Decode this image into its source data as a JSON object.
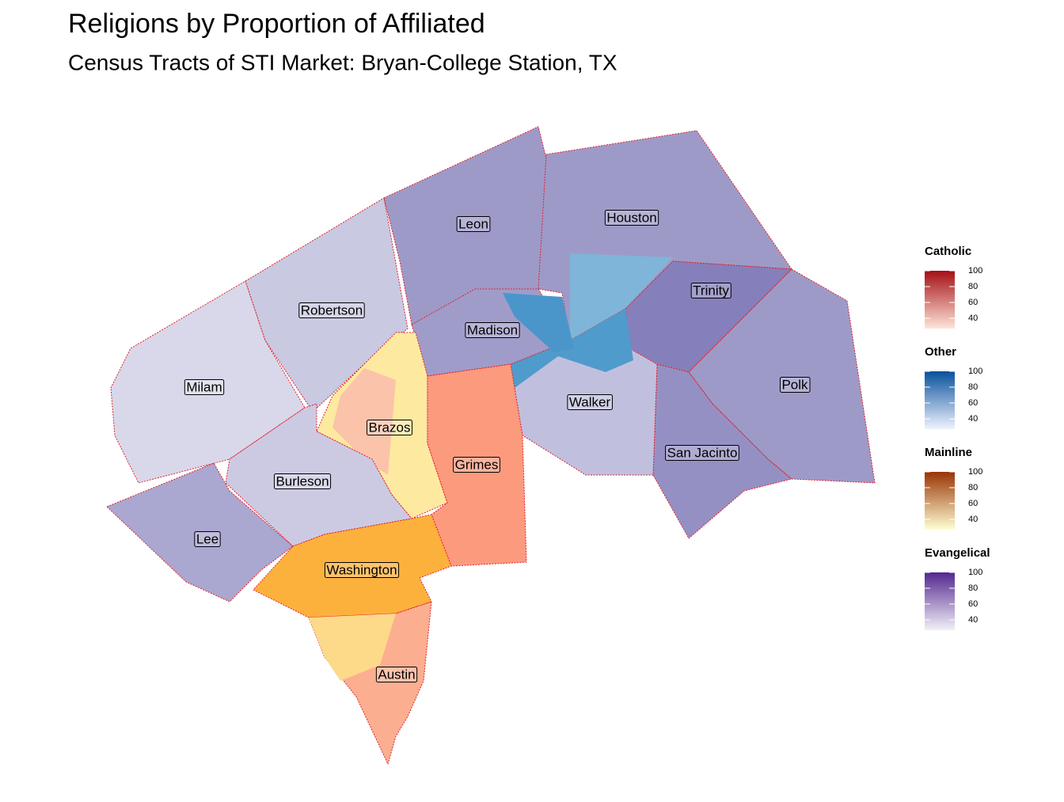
{
  "title": "Religions by Proportion of Affiliated",
  "subtitle": "Census Tracts of STI Market: Bryan-College Station, TX",
  "counties": [
    "Leon",
    "Houston",
    "Robertson",
    "Trinity",
    "Madison",
    "Milam",
    "Polk",
    "Walker",
    "Brazos",
    "San Jacinto",
    "Grimes",
    "Burleson",
    "Lee",
    "Washington",
    "Austin"
  ],
  "legends": [
    {
      "title": "Catholic",
      "colors": [
        "#fee5d9",
        "#a50f15"
      ],
      "limits": [
        27,
        100
      ],
      "ticks": [
        40,
        60,
        80,
        100
      ]
    },
    {
      "title": "Other",
      "colors": [
        "#eff3ff",
        "#08519c"
      ],
      "limits": [
        27,
        100
      ],
      "ticks": [
        40,
        60,
        80,
        100
      ]
    },
    {
      "title": "Mainline",
      "colors": [
        "#ffffd4",
        "#993404"
      ],
      "limits": [
        27,
        100
      ],
      "ticks": [
        40,
        60,
        80,
        100
      ]
    },
    {
      "title": "Evangelical",
      "colors": [
        "#f2f0f7",
        "#54278f"
      ],
      "limits": [
        27,
        100
      ],
      "ticks": [
        40,
        60,
        80,
        100
      ]
    }
  ]
}
